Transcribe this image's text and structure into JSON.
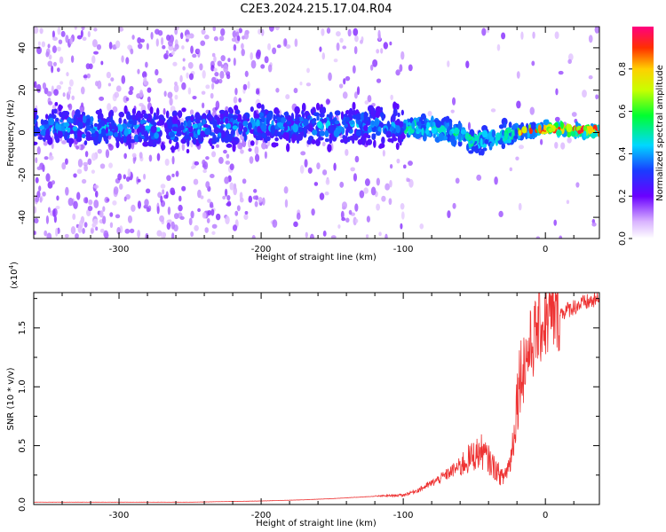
{
  "title": "C2E3.2024.215.17.04.R04",
  "colors": {
    "snr_line": "#ee3333",
    "frame": "#000000"
  },
  "chart_data": [
    {
      "type": "heatmap",
      "xlabel": "Height of straight line (km)",
      "ylabel": "Frequency (Hz)",
      "xlim": [
        -360,
        38
      ],
      "ylim": [
        -50,
        50
      ],
      "x_ticks": [
        -300,
        -200,
        -100,
        0
      ],
      "x_tick_labels": [
        "-300",
        "-200",
        "-100",
        "0"
      ],
      "y_ticks": [
        -40,
        -20,
        0,
        20,
        40
      ],
      "y_tick_labels": [
        "-40",
        "-20",
        "0",
        "20",
        "40"
      ],
      "colorbar": {
        "label": "Normalized spectral amplitude",
        "range": [
          0,
          1
        ],
        "ticks": [
          0.0,
          0.2,
          0.4,
          0.6,
          0.8
        ],
        "tick_labels": [
          "0.0",
          "0.2",
          "0.4",
          "0.6",
          "0.8"
        ]
      },
      "ridge": {
        "x": [
          -360,
          -300,
          -250,
          -200,
          -150,
          -120,
          -100,
          -80,
          -60,
          -50,
          -40,
          -30,
          -20,
          -10,
          0,
          10,
          20,
          38
        ],
        "freq": [
          3,
          2,
          1,
          4,
          3,
          4,
          3,
          2,
          -1,
          -4,
          -3,
          -1,
          0,
          1,
          2,
          2,
          1,
          1
        ]
      }
    },
    {
      "type": "line",
      "xlabel": "Height of straight line (km)",
      "ylabel": "SNR (10 * v/v)",
      "y_multiplier": "(x10",
      "y_multiplier_exp": "4",
      "y_multiplier_close": ")",
      "xlim": [
        -360,
        38
      ],
      "ylim": [
        0,
        1.8
      ],
      "x_ticks": [
        -300,
        -200,
        -100,
        0
      ],
      "x_tick_labels": [
        "-300",
        "-200",
        "-100",
        "0"
      ],
      "y_ticks": [
        0.0,
        0.5,
        1.0,
        1.5
      ],
      "y_tick_labels": [
        "0.0",
        "0.5",
        "1.0",
        "1.5"
      ],
      "series": [
        {
          "x": [
            -360,
            -300,
            -250,
            -200,
            -170,
            -150,
            -120,
            -100,
            -90,
            -80,
            -70,
            -60,
            -50,
            -45,
            -40,
            -35,
            -30,
            -25,
            -22,
            -20,
            -18,
            -15,
            -10,
            -5,
            0,
            5,
            10,
            20,
            30,
            38
          ],
          "y": [
            0.02,
            0.02,
            0.02,
            0.03,
            0.04,
            0.05,
            0.07,
            0.08,
            0.12,
            0.18,
            0.25,
            0.33,
            0.42,
            0.45,
            0.38,
            0.3,
            0.22,
            0.35,
            0.6,
            0.9,
            1.1,
            1.2,
            1.35,
            1.5,
            1.55,
            1.6,
            1.62,
            1.68,
            1.72,
            1.74
          ]
        }
      ]
    }
  ]
}
